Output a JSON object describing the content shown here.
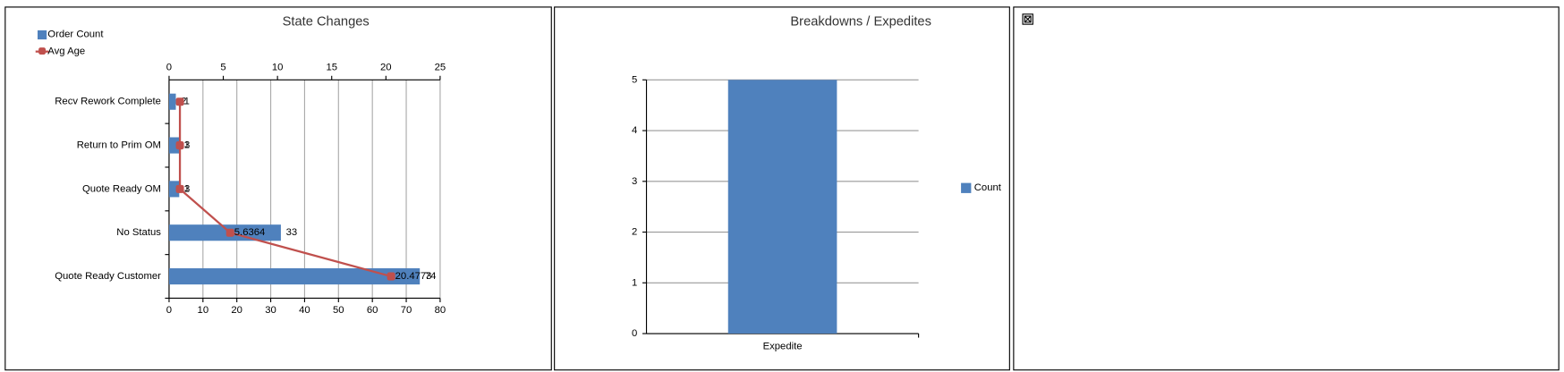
{
  "chart_data": [
    {
      "type": "bar",
      "orientation": "horizontal",
      "title": "State Changes",
      "categories": [
        "Recv Rework Complete",
        "Return to Prim OM",
        "Quote Ready OM",
        "No Status",
        "Quote Ready Customer"
      ],
      "series": [
        {
          "name": "Order Count",
          "color": "#4f81bd",
          "type": "bar",
          "axis": "x",
          "values": [
            2,
            3,
            3,
            33,
            74
          ]
        },
        {
          "name": "Avg Age",
          "color": "#c0504d",
          "type": "line",
          "axis": "x2",
          "values": [
            1,
            1,
            1,
            5.6364,
            20.4773
          ]
        }
      ],
      "xlim": [
        0,
        80
      ],
      "xticks": [
        0,
        10,
        20,
        30,
        40,
        50,
        60,
        70,
        80
      ],
      "x2lim": [
        0,
        25
      ],
      "x2ticks": [
        0,
        5,
        10,
        15,
        20,
        25
      ],
      "grid": true,
      "legend": "top-left",
      "data_labels": true
    },
    {
      "type": "bar",
      "orientation": "vertical",
      "title": "Breakdowns / Expedites",
      "categories": [
        "Expedite"
      ],
      "series": [
        {
          "name": "Count",
          "color": "#4f81bd",
          "type": "bar",
          "values": [
            5
          ]
        }
      ],
      "ylim": [
        0,
        5
      ],
      "yticks": [
        0,
        1,
        2,
        3,
        4,
        5
      ],
      "grid": true,
      "legend": "right",
      "data_labels": false
    }
  ]
}
